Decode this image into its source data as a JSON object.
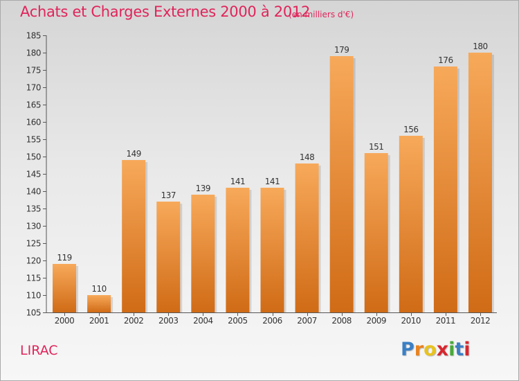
{
  "header": {
    "title": "Achats et Charges Externes 2000 à 2012",
    "unit": "(en milliers d'€)"
  },
  "footer": {
    "commune": "LIRAC",
    "brand": {
      "letters": [
        "P",
        "r",
        "o",
        "x",
        "i",
        "t",
        "i"
      ],
      "colors": [
        "#3b7fc4",
        "#e8831f",
        "#e8c31f",
        "#d8262e",
        "#4aa83a",
        "#3b7fc4",
        "#d8262e"
      ]
    }
  },
  "colors": {
    "bar_light": "#f7a95a",
    "bar_dark": "#d06b16",
    "accent": "#e0245a"
  },
  "chart_data": {
    "type": "bar",
    "title": "Achats et Charges Externes 2000 à 2012",
    "categories": [
      "2000",
      "2001",
      "2002",
      "2003",
      "2004",
      "2005",
      "2006",
      "2007",
      "2008",
      "2009",
      "2010",
      "2011",
      "2012"
    ],
    "values": [
      119,
      110,
      149,
      137,
      139,
      141,
      141,
      148,
      179,
      151,
      156,
      176,
      180
    ],
    "ylim": [
      105,
      185
    ],
    "yticks": [
      105,
      110,
      115,
      120,
      125,
      130,
      135,
      140,
      145,
      150,
      155,
      160,
      165,
      170,
      175,
      180,
      185
    ],
    "grid": false,
    "legend": "none",
    "xlabel": "",
    "ylabel": ""
  }
}
